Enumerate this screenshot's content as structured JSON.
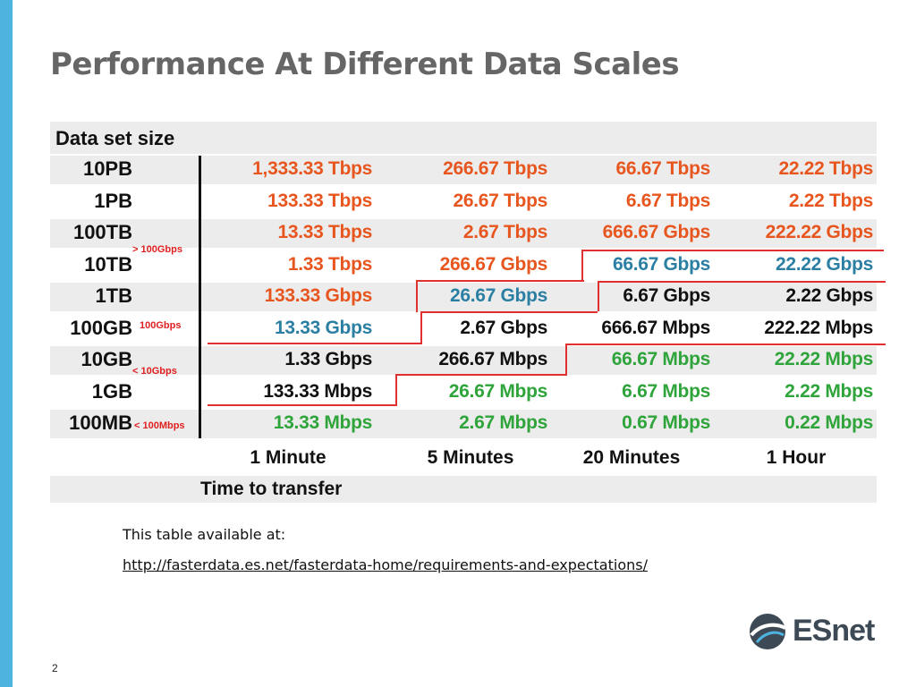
{
  "slide": {
    "title": "Performance At Different Data Scales",
    "page_number": "2"
  },
  "table": {
    "header": "Data set size",
    "rows": [
      {
        "size": "10PB",
        "cells": [
          {
            "text": "1,333.33 Tbps",
            "color": "#e8561f"
          },
          {
            "text": "266.67 Tbps",
            "color": "#e8561f"
          },
          {
            "text": "66.67 Tbps",
            "color": "#e8561f"
          },
          {
            "text": "22.22 Tbps",
            "color": "#e8561f"
          }
        ]
      },
      {
        "size": "1PB",
        "cells": [
          {
            "text": "133.33 Tbps",
            "color": "#e8561f"
          },
          {
            "text": "26.67 Tbps",
            "color": "#e8561f"
          },
          {
            "text": "6.67 Tbps",
            "color": "#e8561f"
          },
          {
            "text": "2.22 Tbps",
            "color": "#e8561f"
          }
        ]
      },
      {
        "size": "100TB",
        "cells": [
          {
            "text": "13.33 Tbps",
            "color": "#e8561f"
          },
          {
            "text": "2.67 Tbps",
            "color": "#e8561f"
          },
          {
            "text": "666.67 Gbps",
            "color": "#e8561f"
          },
          {
            "text": "222.22 Gbps",
            "color": "#e8561f"
          }
        ]
      },
      {
        "size": "10TB",
        "cells": [
          {
            "text": "1.33 Tbps",
            "color": "#e8561f"
          },
          {
            "text": "266.67 Gbps",
            "color": "#e8561f"
          },
          {
            "text": "66.67 Gbps",
            "color": "#2b7fa3"
          },
          {
            "text": "22.22 Gbps",
            "color": "#2b7fa3"
          }
        ]
      },
      {
        "size": "1TB",
        "cells": [
          {
            "text": "133.33 Gbps",
            "color": "#e8561f"
          },
          {
            "text": "26.67 Gbps",
            "color": "#2b7fa3"
          },
          {
            "text": "6.67 Gbps",
            "color": "#111111"
          },
          {
            "text": "2.22 Gbps",
            "color": "#111111"
          }
        ]
      },
      {
        "size": "100GB",
        "cells": [
          {
            "text": "13.33 Gbps",
            "color": "#2b7fa3"
          },
          {
            "text": "2.67 Gbps",
            "color": "#111111"
          },
          {
            "text": "666.67 Mbps",
            "color": "#111111"
          },
          {
            "text": "222.22 Mbps",
            "color": "#111111"
          }
        ]
      },
      {
        "size": "10GB",
        "cells": [
          {
            "text": "1.33 Gbps",
            "color": "#111111"
          },
          {
            "text": "266.67 Mbps",
            "color": "#111111"
          },
          {
            "text": "66.67 Mbps",
            "color": "#2ea43a"
          },
          {
            "text": "22.22 Mbps",
            "color": "#2ea43a"
          }
        ]
      },
      {
        "size": "1GB",
        "cells": [
          {
            "text": "133.33 Mbps",
            "color": "#111111"
          },
          {
            "text": "26.67 Mbps",
            "color": "#2ea43a"
          },
          {
            "text": "6.67 Mbps",
            "color": "#2ea43a"
          },
          {
            "text": "2.22 Mbps",
            "color": "#2ea43a"
          }
        ]
      },
      {
        "size": "100MB",
        "cells": [
          {
            "text": "13.33 Mbps",
            "color": "#2ea43a"
          },
          {
            "text": "2.67 Mbps",
            "color": "#2ea43a"
          },
          {
            "text": "0.67 Mbps",
            "color": "#2ea43a"
          },
          {
            "text": "0.22 Mbps",
            "color": "#2ea43a"
          }
        ]
      }
    ],
    "band_notes": [
      {
        "text": "> 100Gbps",
        "color": "#e02020"
      },
      {
        "text": "100Gbps",
        "color": "#e02020"
      },
      {
        "text": "< 10Gbps",
        "color": "#e02020"
      },
      {
        "text": "< 100Mbps",
        "color": "#e02020"
      }
    ],
    "time_columns": [
      "1 Minute",
      "5 Minutes",
      "20 Minutes",
      "1 Hour"
    ],
    "footer": "Time to transfer",
    "threshold_line_color": "#e03030"
  },
  "source": {
    "label": "This table available at:",
    "url": "http://fasterdata.es.net/fasterdata-home/requirements-and-expectations/"
  },
  "logo": {
    "text": "ESnet",
    "icon": "globe-swoosh-icon",
    "color": "#3d4a55"
  },
  "accent_color": "#4fb3e0"
}
